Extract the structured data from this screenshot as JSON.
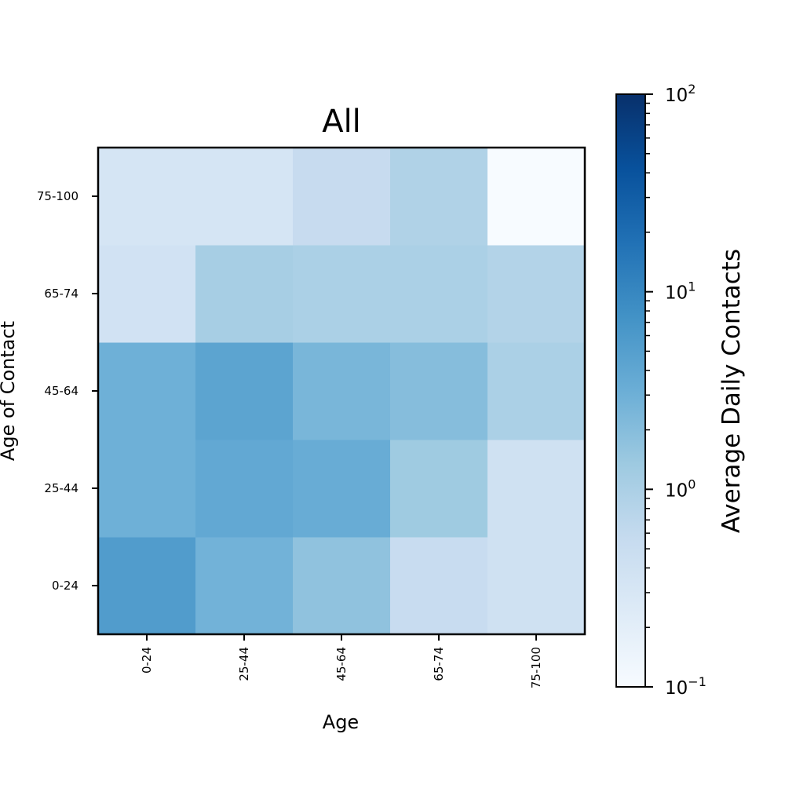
{
  "chart_data": {
    "type": "heatmap",
    "title": "All",
    "xlabel": "Age",
    "ylabel": "Age of Contact",
    "x_categories": [
      "0-24",
      "25-44",
      "45-64",
      "65-74",
      "75-100"
    ],
    "y_categories": [
      "0-24",
      "25-44",
      "45-64",
      "65-74",
      "75-100"
    ],
    "values": [
      [
        5.5,
        2.8,
        1.7,
        0.52,
        0.4
      ],
      [
        3.0,
        3.8,
        3.4,
        1.3,
        0.4
      ],
      [
        3.0,
        4.3,
        2.5,
        2.0,
        1.0
      ],
      [
        0.38,
        1.1,
        1.0,
        1.0,
        0.85
      ],
      [
        0.33,
        0.33,
        0.55,
        0.9,
        0.1
      ]
    ],
    "colorbar": {
      "label": "Average Daily Contacts",
      "scale": "log",
      "range": [
        0.1,
        100
      ],
      "colormap": "Blues",
      "ticks": [
        {
          "value": 0.1,
          "base": "10",
          "exp": "−1"
        },
        {
          "value": 1,
          "base": "10",
          "exp": "0"
        },
        {
          "value": 10,
          "base": "10",
          "exp": "1"
        },
        {
          "value": 100,
          "base": "10",
          "exp": "2"
        }
      ]
    }
  }
}
